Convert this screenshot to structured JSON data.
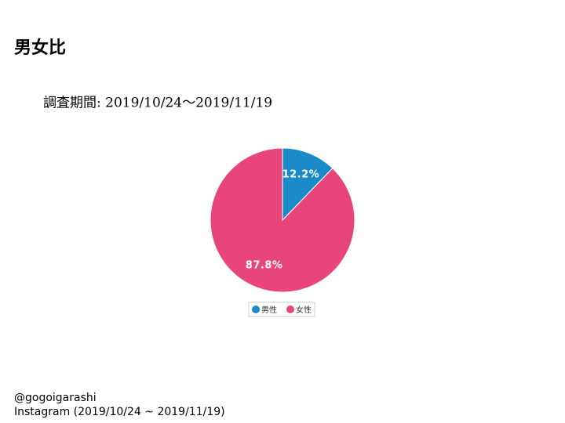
{
  "chart_data": {
    "type": "pie",
    "title": "男女比",
    "subtitle": "調査期間: 2019/10/24～2019/11/19",
    "categories": [
      "男性",
      "女性"
    ],
    "values": [
      12.2,
      87.8
    ],
    "value_labels": [
      "12.2%",
      "87.8%"
    ],
    "colors": [
      "#1b8ac9",
      "#e8457b"
    ],
    "legend": "bottom"
  },
  "footer": [
    "@gogoigarashi",
    "Instagram (2019/10/24 ~ 2019/11/19)"
  ]
}
